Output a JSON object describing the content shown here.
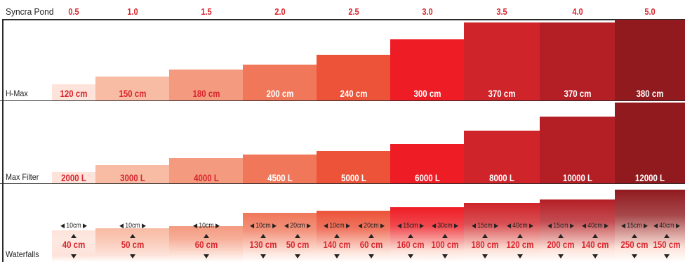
{
  "chart_data": {
    "type": "bar",
    "header_label": "Syncra Pond",
    "categories": [
      "0.5",
      "1.0",
      "1.5",
      "2.0",
      "2.5",
      "3.0",
      "3.5",
      "4.0",
      "5.0"
    ],
    "colors": [
      "#fde3da",
      "#f8bba4",
      "#f49a7f",
      "#f0775a",
      "#ec5338",
      "#ee1c24",
      "#cf2429",
      "#b41f26",
      "#901a1e"
    ],
    "series": [
      {
        "name": "H-Max",
        "values": [
          120,
          150,
          180,
          200,
          240,
          300,
          370,
          370,
          380
        ],
        "labels": [
          "120 cm",
          "150 cm",
          "180 cm",
          "200 cm",
          "240 cm",
          "300 cm",
          "370 cm",
          "370 cm",
          "380 cm"
        ]
      },
      {
        "name": "Max Filter",
        "values": [
          2000,
          3000,
          4000,
          4500,
          5000,
          6000,
          8000,
          10000,
          12000
        ],
        "labels": [
          "2000 L",
          "3000 L",
          "4000 L",
          "4500 L",
          "5000 L",
          "6000 L",
          "8000 L",
          "10000 L",
          "12000 L"
        ]
      },
      {
        "name": "Waterfalls",
        "items": [
          [
            {
              "width": "10cm",
              "height": "40 cm"
            }
          ],
          [
            {
              "width": "10cm",
              "height": "50 cm"
            }
          ],
          [
            {
              "width": "10cm",
              "height": "60 cm"
            }
          ],
          [
            {
              "width": "10cm",
              "height": "130 cm"
            },
            {
              "width": "20cm",
              "height": "50 cm"
            }
          ],
          [
            {
              "width": "10cm",
              "height": "140 cm"
            },
            {
              "width": "20cm",
              "height": "60 cm"
            }
          ],
          [
            {
              "width": "15cm",
              "height": "160 cm"
            },
            {
              "width": "30cm",
              "height": "100 cm"
            }
          ],
          [
            {
              "width": "15cm",
              "height": "180 cm"
            },
            {
              "width": "40cm",
              "height": "120 cm"
            }
          ],
          [
            {
              "width": "15cm",
              "height": "200 cm"
            },
            {
              "width": "40cm",
              "height": "140 cm"
            }
          ],
          [
            {
              "width": "15cm",
              "height": "250 cm"
            },
            {
              "width": "40cm",
              "height": "150 cm"
            }
          ]
        ]
      }
    ]
  }
}
